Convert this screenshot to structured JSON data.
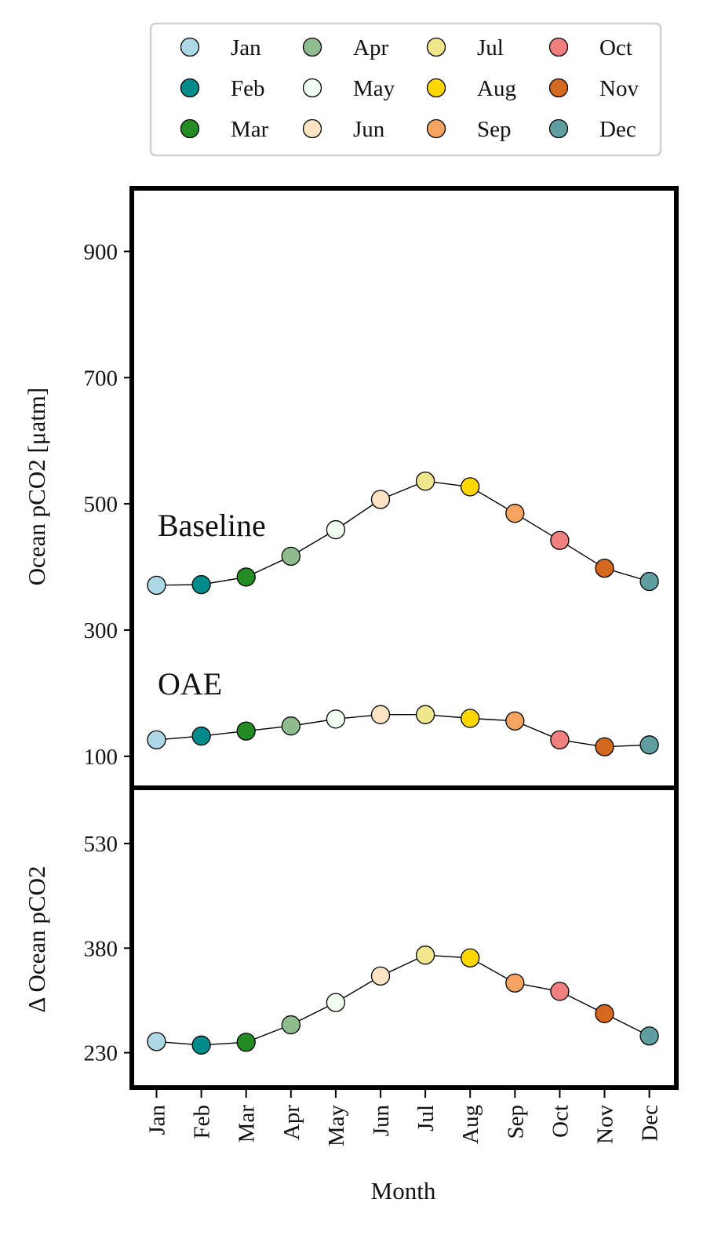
{
  "chart_data": {
    "type": "line",
    "xlabel": "Month",
    "categories": [
      "Jan",
      "Feb",
      "Mar",
      "Apr",
      "May",
      "Jun",
      "Jul",
      "Aug",
      "Sep",
      "Oct",
      "Nov",
      "Dec"
    ],
    "legend": {
      "placement": "top",
      "columns": 4,
      "entries": [
        {
          "label": "Jan",
          "color": "#add8e6"
        },
        {
          "label": "Feb",
          "color": "#008b8b"
        },
        {
          "label": "Mar",
          "color": "#228b22"
        },
        {
          "label": "Apr",
          "color": "#8fbc8f"
        },
        {
          "label": "May",
          "color": "#f0fff0"
        },
        {
          "label": "Jun",
          "color": "#ffe4c4"
        },
        {
          "label": "Jul",
          "color": "#f0e68c"
        },
        {
          "label": "Aug",
          "color": "#ffd700"
        },
        {
          "label": "Sep",
          "color": "#f4a460"
        },
        {
          "label": "Oct",
          "color": "#f08080"
        },
        {
          "label": "Nov",
          "color": "#d2691e"
        },
        {
          "label": "Dec",
          "color": "#5f9ea0"
        }
      ]
    },
    "panels": [
      {
        "ylabel": "Ocean pCO2 [μatm]",
        "ylim": [
          50,
          1000
        ],
        "yticks": [
          100,
          300,
          500,
          700,
          900
        ],
        "grid": false,
        "series": [
          {
            "annotation": "Baseline",
            "values": [
              371,
              372,
              384,
              417,
              459,
              507,
              536,
              527,
              485,
              442,
              398,
              377
            ]
          },
          {
            "annotation": "OAE",
            "values": [
              126,
              132,
              140,
              148,
              159,
              166,
              166,
              160,
              156,
              126,
              115,
              118
            ]
          }
        ]
      },
      {
        "ylabel": "Δ Ocean pCO2",
        "ylim": [
          180,
          610
        ],
        "yticks": [
          230,
          380,
          530
        ],
        "grid": false,
        "series": [
          {
            "values": [
              246,
              241,
              245,
              270,
              302,
              340,
              370,
              366,
              330,
              318,
              286,
              254
            ]
          }
        ]
      }
    ]
  }
}
